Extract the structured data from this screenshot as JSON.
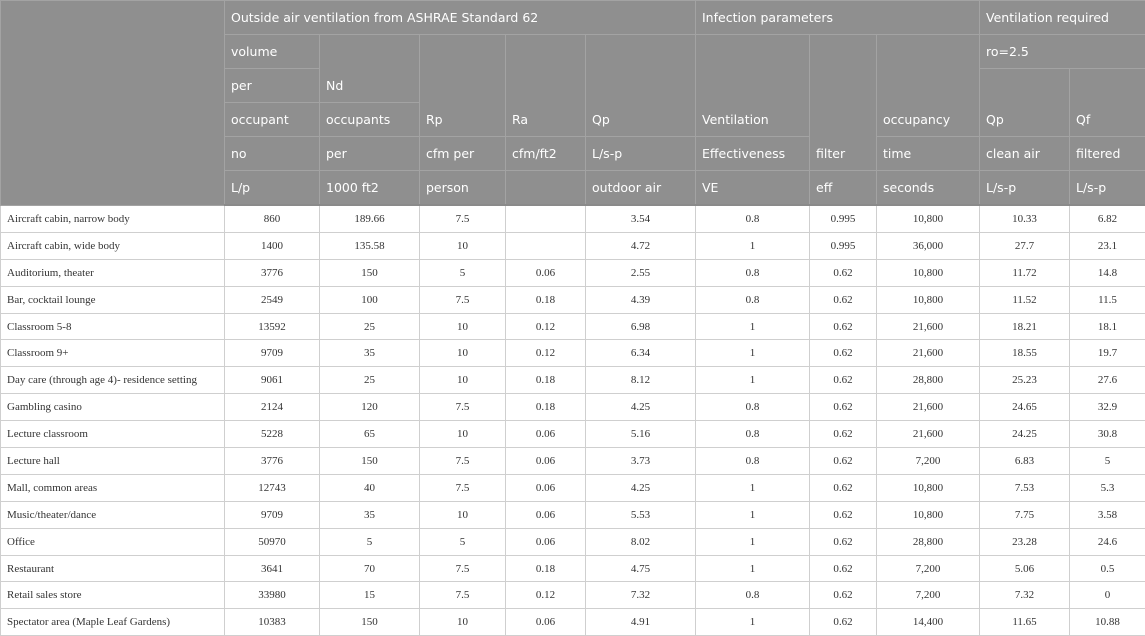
{
  "header": {
    "groups": {
      "outside": "Outside air ventilation from ASHRAE Standard 62",
      "infection": "Infection parameters",
      "required": "Ventilation required",
      "ro": "ro=2.5"
    },
    "volume": [
      "volume",
      "per",
      "occupant",
      "no",
      "L/p"
    ],
    "nd": [
      "Nd",
      "occupants",
      "per",
      "1000 ft2"
    ],
    "rp": [
      "Rp",
      "cfm per",
      "person"
    ],
    "ra": [
      "Ra",
      "cfm/ft2"
    ],
    "qp": [
      "Qp",
      "L/s-p",
      "outdoor air"
    ],
    "ve": [
      "Ventilation",
      "Effectiveness",
      "VE"
    ],
    "filter": [
      "filter",
      "eff"
    ],
    "occ": [
      "occupancy",
      "time",
      "seconds"
    ],
    "qpc": [
      "Qp",
      "clean air",
      "L/s-p"
    ],
    "qf": [
      "Qf",
      "filtered",
      "L/s-p"
    ]
  },
  "rows": [
    [
      "Aircraft cabin, narrow body",
      "860",
      "189.66",
      "7.5",
      "",
      "3.54",
      "0.8",
      "0.995",
      "10,800",
      "10.33",
      "6.82"
    ],
    [
      "Aircraft cabin, wide body",
      "1400",
      "135.58",
      "10",
      "",
      "4.72",
      "1",
      "0.995",
      "36,000",
      "27.7",
      "23.1"
    ],
    [
      "Auditorium, theater",
      "3776",
      "150",
      "5",
      "0.06",
      "2.55",
      "0.8",
      "0.62",
      "10,800",
      "11.72",
      "14.8"
    ],
    [
      "Bar, cocktail lounge",
      "2549",
      "100",
      "7.5",
      "0.18",
      "4.39",
      "0.8",
      "0.62",
      "10,800",
      "11.52",
      "11.5"
    ],
    [
      "Classroom 5-8",
      "13592",
      "25",
      "10",
      "0.12",
      "6.98",
      "1",
      "0.62",
      "21,600",
      "18.21",
      "18.1"
    ],
    [
      "Classroom 9+",
      "9709",
      "35",
      "10",
      "0.12",
      "6.34",
      "1",
      "0.62",
      "21,600",
      "18.55",
      "19.7"
    ],
    [
      "Day care (through age 4)- residence setting",
      "9061",
      "25",
      "10",
      "0.18",
      "8.12",
      "1",
      "0.62",
      "28,800",
      "25.23",
      "27.6"
    ],
    [
      "Gambling casino",
      "2124",
      "120",
      "7.5",
      "0.18",
      "4.25",
      "0.8",
      "0.62",
      "21,600",
      "24.65",
      "32.9"
    ],
    [
      "Lecture classroom",
      "5228",
      "65",
      "10",
      "0.06",
      "5.16",
      "0.8",
      "0.62",
      "21,600",
      "24.25",
      "30.8"
    ],
    [
      "Lecture hall",
      "3776",
      "150",
      "7.5",
      "0.06",
      "3.73",
      "0.8",
      "0.62",
      "7,200",
      "6.83",
      "5"
    ],
    [
      "Mall, common areas",
      "12743",
      "40",
      "7.5",
      "0.06",
      "4.25",
      "1",
      "0.62",
      "10,800",
      "7.53",
      "5.3"
    ],
    [
      "Music/theater/dance",
      "9709",
      "35",
      "10",
      "0.06",
      "5.53",
      "1",
      "0.62",
      "10,800",
      "7.75",
      "3.58"
    ],
    [
      "Office",
      "50970",
      "5",
      "5",
      "0.06",
      "8.02",
      "1",
      "0.62",
      "28,800",
      "23.28",
      "24.6"
    ],
    [
      "Restaurant",
      "3641",
      "70",
      "7.5",
      "0.18",
      "4.75",
      "1",
      "0.62",
      "7,200",
      "5.06",
      "0.5"
    ],
    [
      "Retail sales store",
      "33980",
      "15",
      "7.5",
      "0.12",
      "7.32",
      "0.8",
      "0.62",
      "7,200",
      "7.32",
      "0"
    ],
    [
      "Spectator area (Maple Leaf Gardens)",
      "10383",
      "150",
      "10",
      "0.06",
      "4.91",
      "1",
      "0.62",
      "14,400",
      "11.65",
      "10.88"
    ]
  ]
}
